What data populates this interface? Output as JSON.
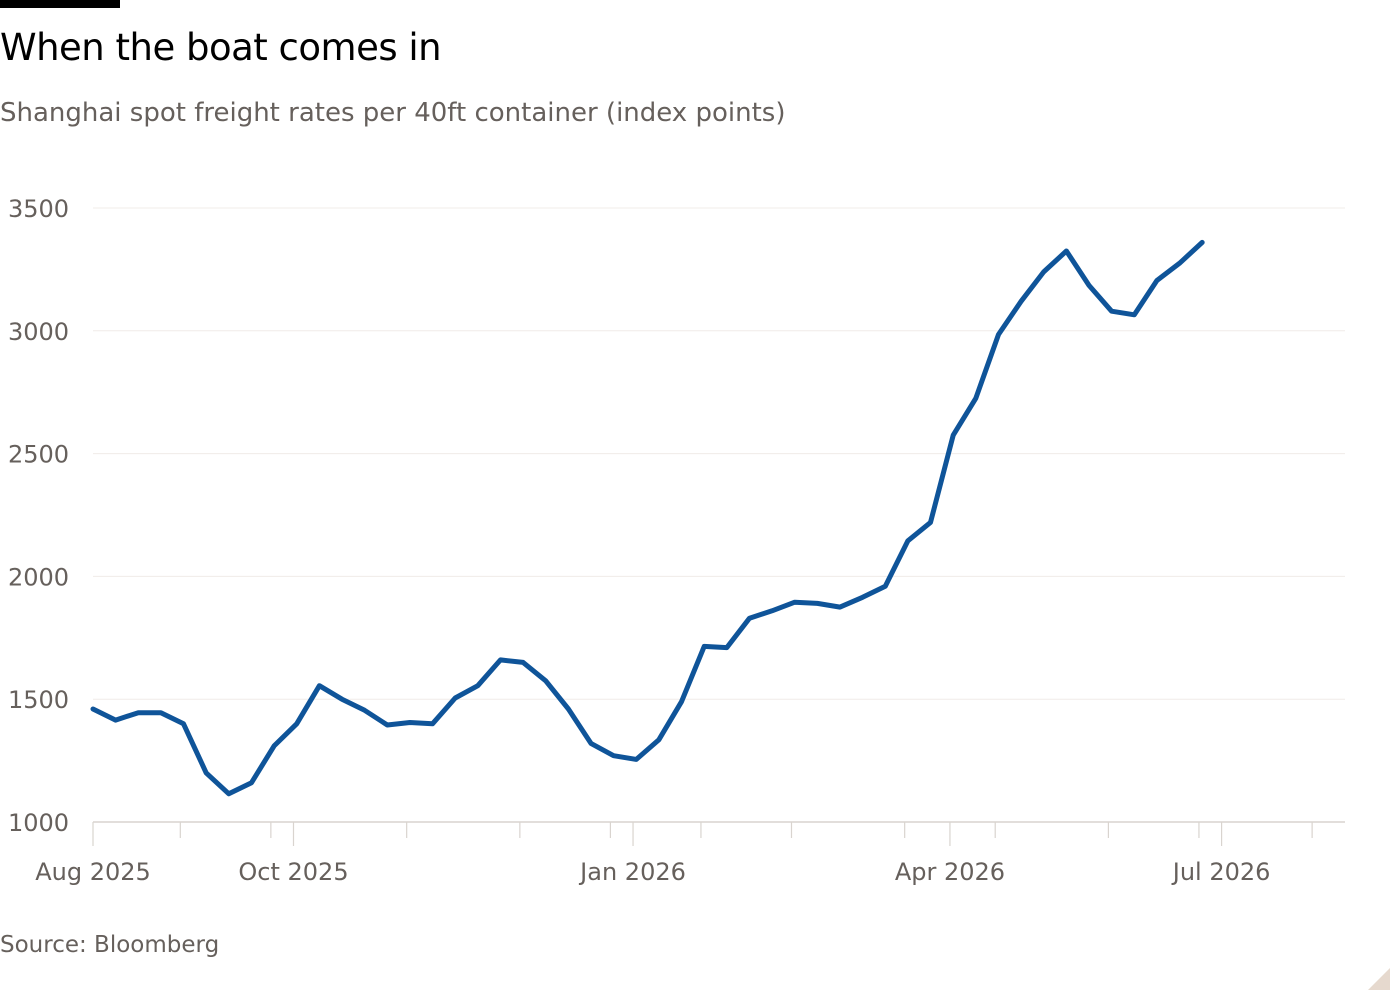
{
  "header": {
    "title": "When the boat comes in",
    "subtitle": "Shanghai spot freight rates per 40ft container (index points)"
  },
  "footer": {
    "source": "Source: Bloomberg"
  },
  "chart_data": {
    "type": "line",
    "title": "When the boat comes in",
    "subtitle": "Shanghai spot freight rates per 40ft container (index points)",
    "xlabel": "",
    "ylabel": "",
    "ylim": [
      1000,
      3500
    ],
    "yticks": [
      1000,
      1500,
      2000,
      2500,
      3000,
      3500
    ],
    "ytick_labels": [
      "1000",
      "1500",
      "2000",
      "2500",
      "3000",
      "3500"
    ],
    "xlim": [
      "2025-08-01",
      "2026-08-31"
    ],
    "xtick_labels": [
      {
        "date": "2025-08-01",
        "label": "Aug 2025"
      },
      {
        "date": "2025-10-02",
        "label": "Oct 2025"
      },
      {
        "date": "2026-01-15",
        "label": "Jan 2026"
      },
      {
        "date": "2026-04-23",
        "label": "Apr 2026"
      },
      {
        "date": "2026-07-16",
        "label": "Jul 2026"
      }
    ],
    "minor_ticks": [
      "2025-08-28",
      "2025-09-25",
      "2025-11-06",
      "2025-12-11",
      "2026-01-08",
      "2026-02-05",
      "2026-03-05",
      "2026-04-09",
      "2026-05-07",
      "2026-06-11",
      "2026-07-09",
      "2026-08-13"
    ],
    "grid": true,
    "legend": "none",
    "line_color": "#0f5499",
    "series": [
      {
        "x": [
          "2025-08-01",
          "2025-08-08",
          "2025-08-15",
          "2025-08-22",
          "2025-08-29",
          "2025-09-05",
          "2025-09-12",
          "2025-09-19",
          "2025-09-26",
          "2025-10-03",
          "2025-10-10",
          "2025-10-17",
          "2025-10-24",
          "2025-10-31",
          "2025-11-07",
          "2025-11-14",
          "2025-11-21",
          "2025-11-28",
          "2025-12-05",
          "2025-12-12",
          "2025-12-19",
          "2025-12-26",
          "2026-01-02",
          "2026-01-09",
          "2026-01-16",
          "2026-01-23",
          "2026-01-30",
          "2026-02-06",
          "2026-02-13",
          "2026-02-20",
          "2026-02-27",
          "2026-03-06",
          "2026-03-13",
          "2026-03-20",
          "2026-03-27",
          "2026-04-03",
          "2026-04-10",
          "2026-04-17",
          "2026-04-24",
          "2026-05-01",
          "2026-05-08",
          "2026-05-15",
          "2026-05-22",
          "2026-05-29",
          "2026-06-05",
          "2026-06-12",
          "2026-06-19",
          "2026-06-26",
          "2026-07-03",
          "2026-07-10",
          "2026-07-17",
          "2026-07-24",
          "2026-07-31",
          "2026-08-07",
          "2026-08-14",
          "2026-08-21"
        ],
        "values": [
          1460,
          1415,
          1445,
          1445,
          1400,
          1200,
          1115,
          1160,
          1310,
          1400,
          1555,
          1500,
          1455,
          1395,
          1405,
          1400,
          1505,
          1555,
          1660,
          1650,
          1575,
          1460,
          1320,
          1270,
          1255,
          1335,
          1490,
          1715,
          1710,
          1830,
          1860,
          1895,
          1890,
          1875,
          1915,
          1960,
          2145,
          2220,
          2575,
          2725,
          2985,
          3120,
          3240,
          3325,
          3185,
          3080,
          3065,
          3205,
          3275,
          3360,
          null,
          null,
          null,
          null,
          null,
          null
        ]
      }
    ]
  }
}
